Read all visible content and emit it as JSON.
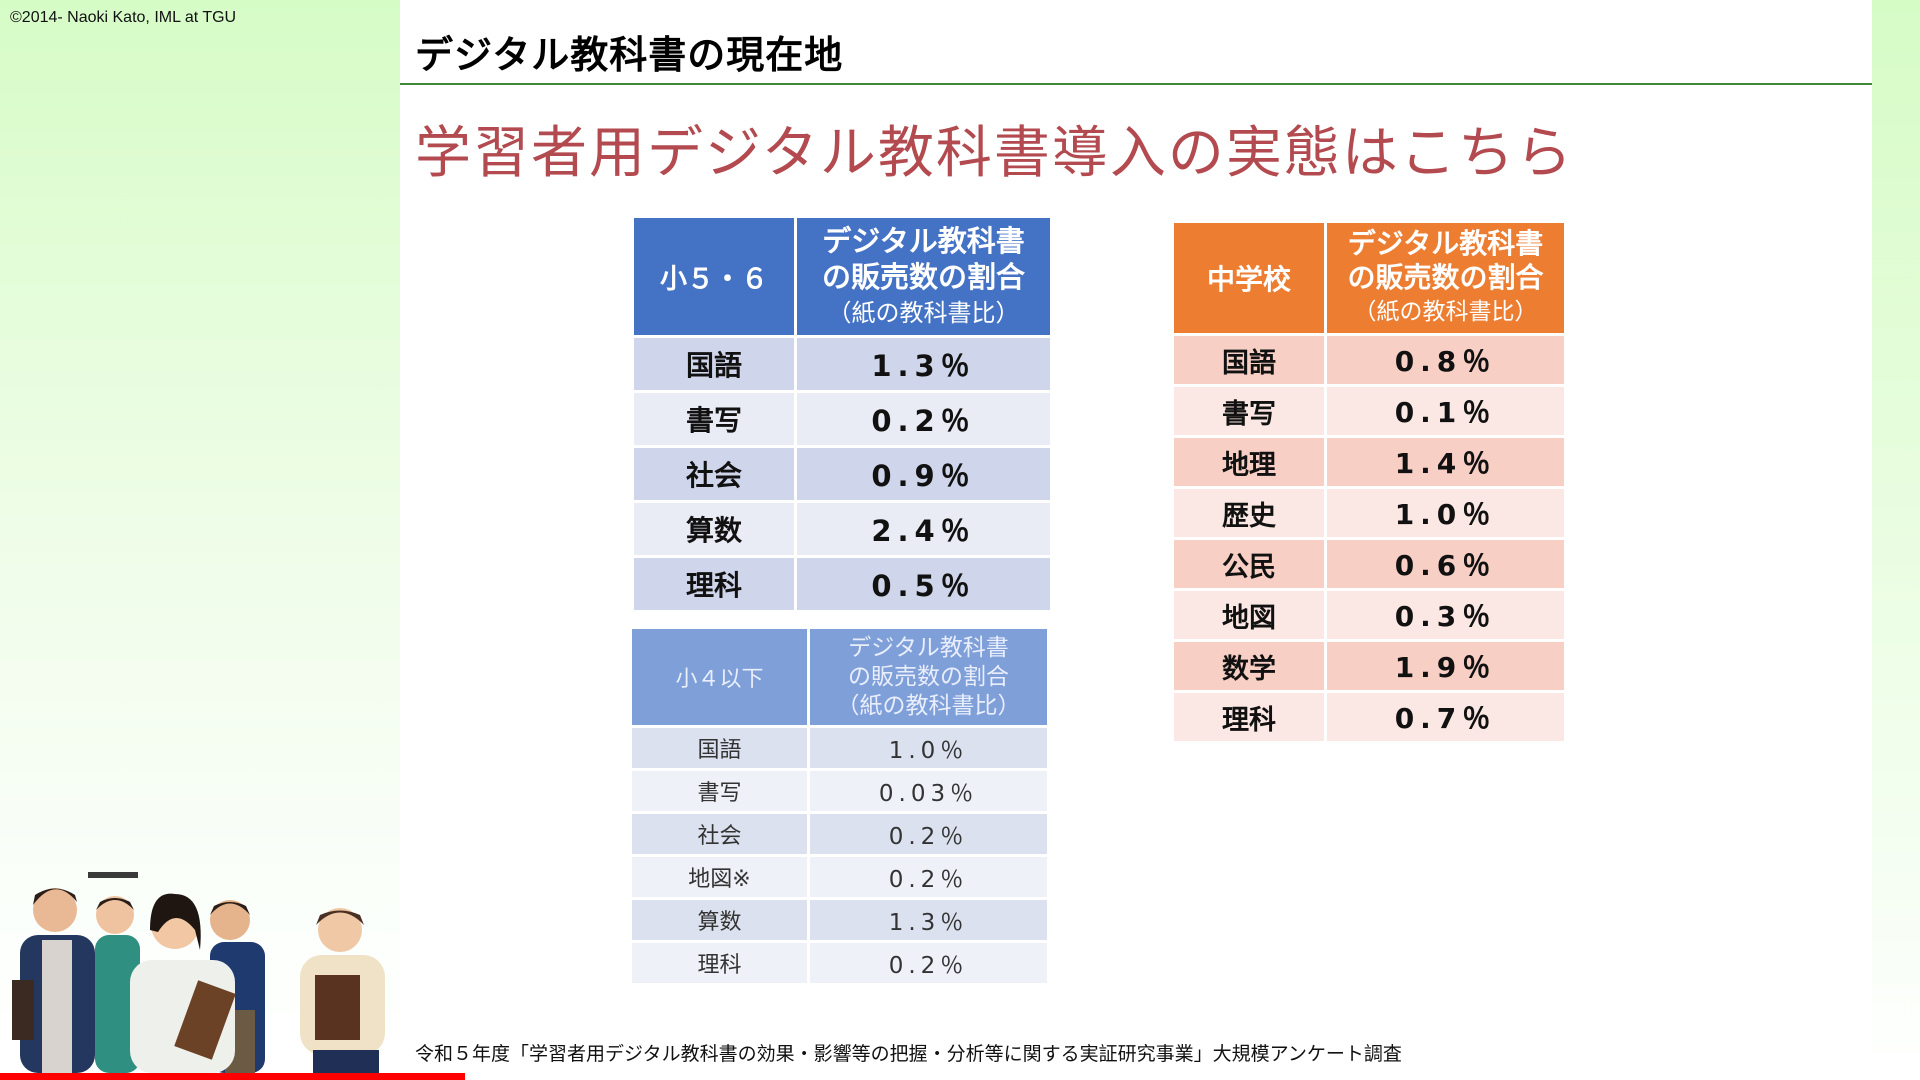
{
  "copyright": "©2014- Naoki Kato, IML at TGU",
  "slide_title": "デジタル教科書の現在地",
  "subtitle": "学習者用デジタル教科書導入の実態はこちら",
  "colors": {
    "accent_green": "#3f8a3a",
    "subtitle_red": "#b24a4f",
    "table1_header": "#4472c4",
    "table2_header": "#7f9fd9",
    "table3_header": "#ed7d31",
    "progress": "#ff0000"
  },
  "header_col2": {
    "line1": "デジタル教科書",
    "line2": "の販売数の割合",
    "line3": "（紙の教科書比）"
  },
  "tables": [
    {
      "title": "小５・６",
      "rows": [
        {
          "subject": "国語",
          "value": "1.3％"
        },
        {
          "subject": "書写",
          "value": "0.2％"
        },
        {
          "subject": "社会",
          "value": "0.9％"
        },
        {
          "subject": "算数",
          "value": "2.4％"
        },
        {
          "subject": "理科",
          "value": "0.5％"
        }
      ]
    },
    {
      "title": "小４以下",
      "rows": [
        {
          "subject": "国語",
          "value": "1.0％"
        },
        {
          "subject": "書写",
          "value": "0.03％"
        },
        {
          "subject": "社会",
          "value": "0.2％"
        },
        {
          "subject": "地図※",
          "value": "0.2％"
        },
        {
          "subject": "算数",
          "value": "1.3％"
        },
        {
          "subject": "理科",
          "value": "0.2％"
        }
      ]
    },
    {
      "title": "中学校",
      "rows": [
        {
          "subject": "国語",
          "value": "0.8％"
        },
        {
          "subject": "書写",
          "value": "0.1％"
        },
        {
          "subject": "地理",
          "value": "1.4％"
        },
        {
          "subject": "歴史",
          "value": "1.0％"
        },
        {
          "subject": "公民",
          "value": "0.6％"
        },
        {
          "subject": "地図",
          "value": "0.3％"
        },
        {
          "subject": "数学",
          "value": "1.9％"
        },
        {
          "subject": "理科",
          "value": "0.7％"
        }
      ]
    }
  ],
  "footnote": "令和５年度「学習者用デジタル教科書の効果・影響等の把握・分析等に関する実証研究事業」大規模アンケート調査",
  "illustration": "students-holding-books-illustration",
  "progress": {
    "percent": 24.2
  }
}
